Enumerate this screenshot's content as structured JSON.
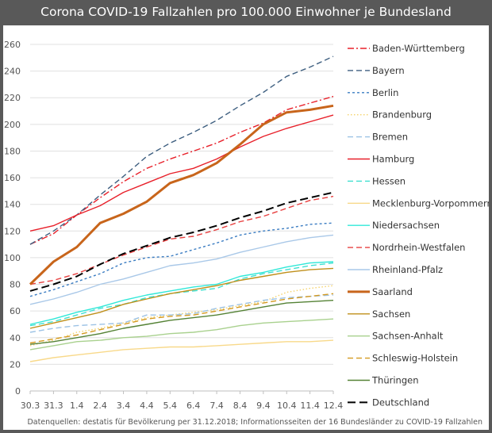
{
  "chart_data": {
    "type": "line",
    "title": "Corona COVID-19 Fallzahlen pro 100.000 Einwohner je Bundesland",
    "source": "Datenquellen: destatis für Bevölkerung per 31.12.2018; Informationsseiten der 16 Bundesländer zu COVID-19 Fallzahlen",
    "x": [
      "30.3",
      "31.3",
      "1.4",
      "2.4",
      "3.4",
      "4.4",
      "5.4",
      "6.4",
      "7.4",
      "8.4",
      "9.4",
      "10.4",
      "11.4",
      "12.4"
    ],
    "ylim": [
      0,
      260
    ],
    "yticks": [
      0,
      20,
      40,
      60,
      80,
      100,
      120,
      140,
      160,
      180,
      200,
      220,
      240,
      260
    ],
    "grid": true,
    "legend": "right",
    "series": [
      {
        "name": "Baden-Württemberg",
        "color": "#e8202a",
        "style": "dashdot",
        "values": [
          110,
          118,
          132,
          145,
          157,
          167,
          174,
          180,
          186,
          194,
          201,
          211,
          216,
          221
        ]
      },
      {
        "name": "Bayern",
        "color": "#3e5f80",
        "style": "dash",
        "values": [
          110,
          120,
          132,
          147,
          161,
          176,
          186,
          194,
          203,
          214,
          224,
          236,
          243,
          251
        ]
      },
      {
        "name": "Berlin",
        "color": "#3a7cc2",
        "style": "shortdash",
        "values": [
          71,
          76,
          82,
          88,
          96,
          100,
          101,
          106,
          111,
          117,
          120,
          122,
          125,
          126
        ]
      },
      {
        "name": "Brandenburg",
        "color": "#f5d36b",
        "style": "dot",
        "values": [
          34,
          38,
          44,
          47,
          51,
          55,
          57,
          59,
          61,
          64,
          67,
          74,
          77,
          79
        ]
      },
      {
        "name": "Bremen",
        "color": "#9cc2e5",
        "style": "dash",
        "values": [
          44,
          47,
          49,
          50,
          51,
          57,
          57,
          58,
          62,
          65,
          68,
          70,
          71,
          72
        ]
      },
      {
        "name": "Hamburg",
        "color": "#e8202a",
        "style": "solid",
        "values": [
          120,
          124,
          132,
          139,
          149,
          156,
          163,
          167,
          174,
          183,
          191,
          197,
          202,
          207
        ]
      },
      {
        "name": "Hessen",
        "color": "#3ee0d0",
        "style": "dash",
        "values": [
          49,
          52,
          57,
          62,
          65,
          70,
          73,
          75,
          77,
          84,
          88,
          91,
          94,
          96
        ]
      },
      {
        "name": "Mecklenburg-Vorpommern",
        "color": "#f8d98a",
        "style": "solid",
        "values": [
          22,
          25,
          27,
          29,
          31,
          32,
          33,
          33,
          34,
          35,
          36,
          37,
          37,
          38
        ]
      },
      {
        "name": "Niedersachsen",
        "color": "#30e8d8",
        "style": "solid",
        "values": [
          50,
          54,
          59,
          63,
          68,
          72,
          75,
          78,
          80,
          86,
          89,
          93,
          96,
          97
        ]
      },
      {
        "name": "Nordrhein-Westfalen",
        "color": "#e84040",
        "style": "dash",
        "values": [
          80,
          83,
          88,
          95,
          102,
          108,
          114,
          116,
          121,
          127,
          131,
          137,
          143,
          146
        ]
      },
      {
        "name": "Rheinland-Pfalz",
        "color": "#a9c8e8",
        "style": "solid",
        "values": [
          65,
          69,
          74,
          80,
          84,
          89,
          94,
          96,
          99,
          104,
          108,
          112,
          115,
          117
        ]
      },
      {
        "name": "Saarland",
        "color": "#c8651b",
        "style": "thick",
        "values": [
          80,
          97,
          108,
          126,
          133,
          142,
          156,
          162,
          171,
          185,
          200,
          209,
          211,
          214
        ]
      },
      {
        "name": "Sachsen",
        "color": "#bf8f1a",
        "style": "solid",
        "values": [
          47,
          51,
          55,
          59,
          65,
          69,
          73,
          76,
          79,
          83,
          86,
          89,
          91,
          92
        ]
      },
      {
        "name": "Sachsen-Anhalt",
        "color": "#a9d18e",
        "style": "solid",
        "values": [
          31,
          34,
          37,
          38,
          40,
          41,
          43,
          44,
          46,
          49,
          51,
          52,
          53,
          54
        ]
      },
      {
        "name": "Schleswig-Holstein",
        "color": "#d49a20",
        "style": "dash",
        "values": [
          36,
          39,
          42,
          46,
          50,
          54,
          56,
          57,
          60,
          63,
          66,
          69,
          71,
          73
        ]
      },
      {
        "name": "Thüringen",
        "color": "#548235",
        "style": "solid",
        "values": [
          35,
          37,
          40,
          43,
          47,
          50,
          53,
          55,
          57,
          60,
          63,
          66,
          67,
          68
        ]
      },
      {
        "name": "Deutschland",
        "color": "#000000",
        "style": "longdash",
        "values": [
          75,
          80,
          86,
          95,
          103,
          109,
          115,
          119,
          124,
          130,
          135,
          141,
          145,
          149
        ]
      }
    ]
  }
}
